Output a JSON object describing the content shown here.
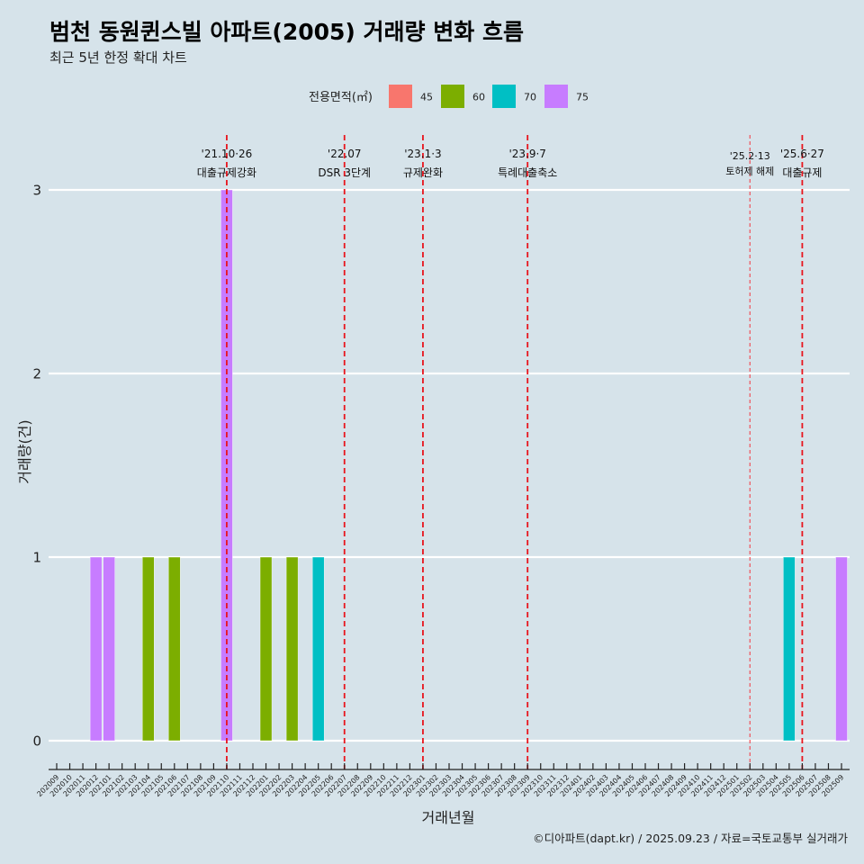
{
  "chart_data": {
    "type": "bar",
    "title": "범천 동원퀸스빌 아파트(2005) 거래량 변화 흐름",
    "subtitle": "최근 5년 한정 확대 차트",
    "xlabel": "거래년월",
    "ylabel": "거래량(건)",
    "ylim": [
      0,
      3
    ],
    "yticks": [
      "0",
      "1",
      "2",
      "3"
    ],
    "grid": true,
    "legend": {
      "title": "전용면적(㎡)",
      "position": "top",
      "entries": [
        {
          "label": "45",
          "color": "#f8766d"
        },
        {
          "label": "60",
          "color": "#7cae00"
        },
        {
          "label": "70",
          "color": "#00bfc4"
        },
        {
          "label": "75",
          "color": "#c77cff"
        }
      ]
    },
    "categories": [
      "202009",
      "202010",
      "202011",
      "202012",
      "202101",
      "202102",
      "202103",
      "202104",
      "202105",
      "202106",
      "202107",
      "202108",
      "202109",
      "202110",
      "202111",
      "202112",
      "202201",
      "202202",
      "202203",
      "202204",
      "202205",
      "202206",
      "202207",
      "202208",
      "202209",
      "202210",
      "202211",
      "202212",
      "202301",
      "202302",
      "202303",
      "202304",
      "202305",
      "202306",
      "202307",
      "202308",
      "202309",
      "202310",
      "202311",
      "202312",
      "202401",
      "202402",
      "202403",
      "202404",
      "202405",
      "202406",
      "202407",
      "202408",
      "202409",
      "202410",
      "202411",
      "202412",
      "202501",
      "202502",
      "202503",
      "202504",
      "202505",
      "202506",
      "202507",
      "202508",
      "202509"
    ],
    "bars": [
      {
        "x": "202012",
        "area": "75",
        "value": 1
      },
      {
        "x": "202101",
        "area": "75",
        "value": 1
      },
      {
        "x": "202104",
        "area": "60",
        "value": 1
      },
      {
        "x": "202106",
        "area": "60",
        "value": 1
      },
      {
        "x": "202110",
        "area": "75",
        "value": 3
      },
      {
        "x": "202201",
        "area": "60",
        "value": 1
      },
      {
        "x": "202203",
        "area": "60",
        "value": 1
      },
      {
        "x": "202205",
        "area": "70",
        "value": 1
      },
      {
        "x": "202505",
        "area": "70",
        "value": 1
      },
      {
        "x": "202509",
        "area": "75",
        "value": 1
      }
    ],
    "annotations": [
      {
        "x": "202110",
        "date": "'21.10·26",
        "label": "대출규제강화",
        "style": "major"
      },
      {
        "x": "202207",
        "date": "'22.07",
        "label": "DSR 3단계",
        "style": "major"
      },
      {
        "x": "202301",
        "date": "'23.1·3",
        "label": "규제완화",
        "style": "major"
      },
      {
        "x": "202309",
        "date": "'23.9·7",
        "label": "특례대출축소",
        "style": "major"
      },
      {
        "x": "202502",
        "date": "'25.2·13",
        "label": "토허제 해제",
        "style": "minor"
      },
      {
        "x": "202506",
        "date": "'25.6·27",
        "label": "대출규제",
        "style": "major"
      }
    ],
    "caption": "©디아파트(dapt.kr) / 2025.09.23 / 자료=국토교통부 실거래가"
  }
}
